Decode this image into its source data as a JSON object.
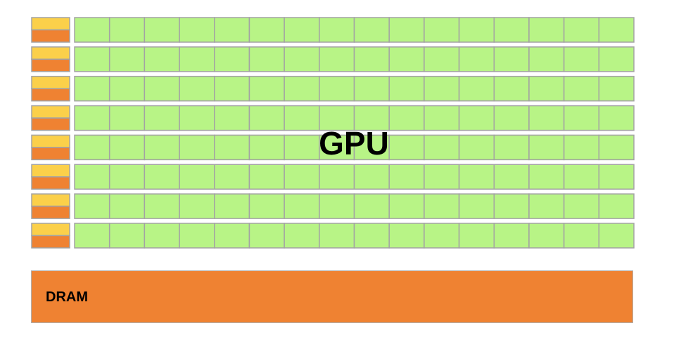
{
  "gpu": {
    "label": "GPU",
    "rows": 8,
    "cores_per_row": 16
  },
  "dram": {
    "label": "DRAM"
  },
  "colors": {
    "core_fill": "#b8f486",
    "core_border": "#a3a3a3",
    "control_fill": "#fbd04a",
    "cache_fill": "#ef8232",
    "dram_fill": "#ef8232",
    "background": "#ffffff"
  }
}
